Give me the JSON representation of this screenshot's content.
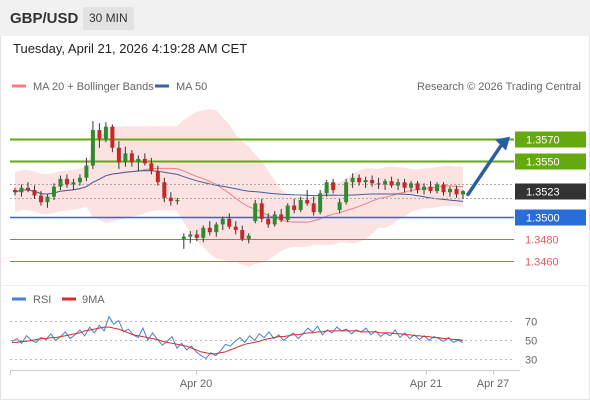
{
  "header": {
    "symbol": "GBP/USD",
    "interval": "30 MIN",
    "timestamp": "Tuesday, April 21, 2026 4:19:28 AM CET"
  },
  "legend": {
    "ma20": "MA 20 + Bollinger Bands",
    "ma50": "MA 50",
    "copyright": "Research © 2026 Trading Central",
    "rsi": "RSI",
    "ma9": "9MA"
  },
  "colors": {
    "resistance": "#66a80f",
    "support": "#2a6dd9",
    "minor_support": "#e05a5a",
    "ma20": "#f08080",
    "ma50": "#3f5f9e",
    "band_fill": "#fde2e2",
    "candle_up": "#2e8b2e",
    "candle_down": "#c62828",
    "arrow": "#2a5f9e",
    "last_price": "#333333",
    "rsi_line": "#4a7fd4",
    "rsi_ma": "#d32f2f"
  },
  "chart_data": {
    "type": "candlestick",
    "ylim": [
      1.3443,
      1.3605
    ],
    "levels": [
      {
        "value": "1.3570",
        "kind": "resistance"
      },
      {
        "value": "1.3550",
        "kind": "resistance"
      },
      {
        "value": "1.3523",
        "kind": "last_price"
      },
      {
        "value": "1.3500",
        "kind": "support"
      },
      {
        "value": "1.3480",
        "kind": "minor_support"
      },
      {
        "value": "1.3460",
        "kind": "minor_support"
      }
    ],
    "x_tick_labels": [
      "Apr 20",
      "Apr 21",
      "Apr 27"
    ],
    "forecast_arrow": {
      "from": 1.352,
      "to": 1.3572
    },
    "candles": [
      [
        1.3524,
        1.3526,
        1.3519,
        1.3522
      ],
      [
        1.3522,
        1.3529,
        1.3518,
        1.3526
      ],
      [
        1.3526,
        1.3531,
        1.3522,
        1.3524
      ],
      [
        1.3524,
        1.3528,
        1.3516,
        1.3519
      ],
      [
        1.3519,
        1.3523,
        1.351,
        1.3513
      ],
      [
        1.3513,
        1.352,
        1.3508,
        1.3518
      ],
      [
        1.3518,
        1.353,
        1.3515,
        1.3527
      ],
      [
        1.3527,
        1.3537,
        1.3524,
        1.3534
      ],
      [
        1.3534,
        1.3538,
        1.3526,
        1.3529
      ],
      [
        1.3529,
        1.3534,
        1.3524,
        1.3531
      ],
      [
        1.3531,
        1.3538,
        1.3528,
        1.3535
      ],
      [
        1.3535,
        1.3553,
        1.3532,
        1.3546
      ],
      [
        1.3546,
        1.3586,
        1.3543,
        1.3578
      ],
      [
        1.3578,
        1.3584,
        1.3562,
        1.357
      ],
      [
        1.357,
        1.3585,
        1.3567,
        1.3581
      ],
      [
        1.3581,
        1.3583,
        1.3558,
        1.3562
      ],
      [
        1.3562,
        1.3568,
        1.3543,
        1.3549
      ],
      [
        1.3549,
        1.3563,
        1.3545,
        1.3557
      ],
      [
        1.3557,
        1.356,
        1.3545,
        1.3549
      ],
      [
        1.3549,
        1.3555,
        1.3541,
        1.3552
      ],
      [
        1.3552,
        1.3557,
        1.3546,
        1.3548
      ],
      [
        1.3548,
        1.3553,
        1.3538,
        1.3541
      ],
      [
        1.3541,
        1.3546,
        1.3528,
        1.3531
      ],
      [
        1.3531,
        1.3535,
        1.3513,
        1.3517
      ],
      [
        1.3517,
        1.3522,
        1.351,
        1.3514
      ],
      [
        1.3514,
        1.3517,
        1.3511,
        1.3515
      ],
      [
        1.348,
        1.3485,
        1.3471,
        1.3482
      ],
      [
        1.3482,
        1.3487,
        1.3476,
        1.3484
      ],
      [
        1.3484,
        1.3488,
        1.3478,
        1.3481
      ],
      [
        1.3481,
        1.3492,
        1.3477,
        1.349
      ],
      [
        1.349,
        1.3496,
        1.3483,
        1.3486
      ],
      [
        1.3486,
        1.3495,
        1.3482,
        1.3493
      ],
      [
        1.3493,
        1.35,
        1.3488,
        1.3498
      ],
      [
        1.3498,
        1.3503,
        1.3489,
        1.3491
      ],
      [
        1.3491,
        1.3496,
        1.3484,
        1.3488
      ],
      [
        1.3488,
        1.3492,
        1.3478,
        1.348
      ],
      [
        1.348,
        1.3485,
        1.3476,
        1.3483
      ],
      [
        1.3496,
        1.3515,
        1.3494,
        1.3512
      ],
      [
        1.3512,
        1.3516,
        1.3495,
        1.3498
      ],
      [
        1.3498,
        1.3503,
        1.349,
        1.3493
      ],
      [
        1.3493,
        1.3505,
        1.3491,
        1.3502
      ],
      [
        1.3502,
        1.3507,
        1.3495,
        1.3497
      ],
      [
        1.3497,
        1.3512,
        1.3495,
        1.351
      ],
      [
        1.351,
        1.3516,
        1.3503,
        1.3506
      ],
      [
        1.3506,
        1.3518,
        1.3504,
        1.3515
      ],
      [
        1.3515,
        1.3524,
        1.351,
        1.3512
      ],
      [
        1.3512,
        1.3518,
        1.3501,
        1.3504
      ],
      [
        1.3504,
        1.3524,
        1.3502,
        1.3521
      ],
      [
        1.3521,
        1.3533,
        1.3518,
        1.3531
      ],
      [
        1.3531,
        1.3534,
        1.3521,
        1.3524
      ],
      [
        1.3506,
        1.3516,
        1.3503,
        1.3513
      ],
      [
        1.3513,
        1.3534,
        1.3511,
        1.3531
      ],
      [
        1.3531,
        1.3539,
        1.3526,
        1.3535
      ],
      [
        1.3535,
        1.3538,
        1.3528,
        1.3531
      ],
      [
        1.3531,
        1.3536,
        1.3526,
        1.3533
      ],
      [
        1.3533,
        1.3537,
        1.3527,
        1.353
      ],
      [
        1.353,
        1.3535,
        1.3525,
        1.3529
      ],
      [
        1.3529,
        1.3534,
        1.3524,
        1.3532
      ],
      [
        1.3532,
        1.3536,
        1.3526,
        1.3528
      ],
      [
        1.3528,
        1.3534,
        1.3524,
        1.3531
      ],
      [
        1.3531,
        1.3534,
        1.3522,
        1.3526
      ],
      [
        1.3526,
        1.3532,
        1.3522,
        1.353
      ],
      [
        1.353,
        1.3532,
        1.3521,
        1.3524
      ],
      [
        1.3524,
        1.353,
        1.352,
        1.3527
      ],
      [
        1.3527,
        1.3532,
        1.3521,
        1.3523
      ],
      [
        1.3523,
        1.3531,
        1.3521,
        1.3529
      ],
      [
        1.3529,
        1.3531,
        1.3519,
        1.3522
      ],
      [
        1.3522,
        1.3527,
        1.3518,
        1.3525
      ],
      [
        1.3525,
        1.3528,
        1.3517,
        1.352
      ],
      [
        1.352,
        1.3524,
        1.3516,
        1.3523
      ]
    ],
    "rsi_axis_ticks": [
      "70",
      "50",
      "30"
    ],
    "rsi_ylim": [
      20,
      80
    ],
    "rsi": [
      48,
      51,
      46,
      54,
      49,
      47,
      52,
      50,
      56,
      49,
      53,
      58,
      51,
      55,
      60,
      54,
      63,
      57,
      65,
      59,
      74,
      66,
      70,
      58,
      61,
      55,
      52,
      62,
      49,
      57,
      50,
      44,
      48,
      53,
      41,
      46,
      39,
      43,
      37,
      33,
      30,
      36,
      33,
      38,
      45,
      43,
      48,
      52,
      47,
      54,
      49,
      56,
      52,
      58,
      51,
      55,
      49,
      53,
      57,
      51,
      56,
      62,
      58,
      64,
      55,
      60,
      57,
      63,
      59,
      61,
      56,
      60,
      58,
      62,
      55,
      59,
      53,
      57,
      54,
      60,
      52,
      57,
      51,
      55,
      50,
      54,
      49,
      53,
      51,
      48,
      52,
      47,
      49,
      47
    ],
    "rsi_ma": [
      47,
      47,
      48,
      48,
      49,
      50,
      51,
      51,
      52,
      52,
      53,
      54,
      55,
      56,
      57,
      59,
      60,
      61,
      62,
      63,
      63,
      62,
      61,
      59,
      57,
      55,
      54,
      53,
      52,
      51,
      50,
      48,
      47,
      46,
      45,
      44,
      43,
      41,
      39,
      37,
      36,
      35,
      35,
      36,
      37,
      39,
      41,
      43,
      45,
      46,
      47,
      48,
      50,
      51,
      52,
      53,
      53,
      54,
      55,
      55,
      56,
      57,
      57,
      58,
      58,
      59,
      59,
      59,
      59,
      59,
      59,
      59,
      58,
      58,
      58,
      58,
      57,
      57,
      57,
      56,
      56,
      55,
      55,
      54,
      54,
      53,
      53,
      52,
      52,
      51,
      51,
      50,
      50,
      49
    ]
  }
}
